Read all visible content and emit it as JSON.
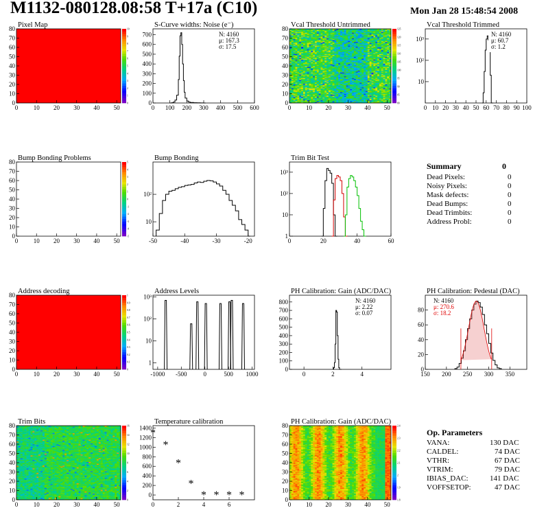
{
  "header": {
    "title": "M1132-080128.08:58 T+17a (C10)",
    "date": "Mon Jan 28 15:48:54 2008"
  },
  "colors": {
    "hist_line": "#000000",
    "trim_red": "#d40000",
    "trim_green": "#00c000",
    "fit_red": "#e00000",
    "map_red": "#ff0000"
  },
  "summary": {
    "title": "Summary",
    "total": "0",
    "rows": [
      {
        "label": "Dead Pixels:",
        "value": "0"
      },
      {
        "label": "Noisy Pixels:",
        "value": "0"
      },
      {
        "label": "Mask defects:",
        "value": "0"
      },
      {
        "label": "Dead Bumps:",
        "value": "0"
      },
      {
        "label": "Dead Trimbits:",
        "value": "0"
      },
      {
        "label": "Address Probl:",
        "value": "0"
      }
    ]
  },
  "op_params": {
    "title": "Op. Parameters",
    "rows": [
      {
        "label": "VANA:",
        "value": "130 DAC"
      },
      {
        "label": "CALDEL:",
        "value": "74 DAC"
      },
      {
        "label": "VTHR:",
        "value": "67 DAC"
      },
      {
        "label": "VTRIM:",
        "value": "79 DAC"
      },
      {
        "label": "IBIAS_DAC:",
        "value": "141 DAC"
      },
      {
        "label": "VOFFSETOP:",
        "value": "47 DAC"
      }
    ]
  },
  "chart_data": [
    {
      "id": "pixel_map",
      "type": "heatmap",
      "title": "Pixel Map",
      "fill": "uniform-red",
      "xlim": [
        0,
        52
      ],
      "ylim": [
        0,
        80
      ],
      "xticks": [
        0,
        10,
        20,
        30,
        40,
        50
      ],
      "yticks": [
        0,
        10,
        20,
        30,
        40,
        50,
        60,
        70,
        80
      ],
      "zlim": [
        0,
        10
      ],
      "zticks": [
        0,
        1,
        2,
        3,
        4,
        5,
        6,
        7,
        8,
        9,
        10
      ]
    },
    {
      "id": "scurve_noise",
      "type": "line",
      "title": "S-Curve widths: Noise (e⁻)",
      "xlim": [
        0,
        600
      ],
      "ylim": [
        0,
        760
      ],
      "xticks": [
        0,
        100,
        200,
        300,
        400,
        500,
        600
      ],
      "yticks": [
        0,
        100,
        200,
        300,
        400,
        500,
        600,
        700
      ],
      "stats": [
        "N: 4160",
        "μ: 167.3",
        "σ: 17.5"
      ],
      "x": [
        100,
        110,
        120,
        130,
        140,
        150,
        155,
        160,
        165,
        170,
        175,
        180,
        185,
        190,
        200,
        210,
        220,
        240,
        260,
        280,
        300
      ],
      "y": [
        0,
        3,
        10,
        30,
        80,
        240,
        480,
        690,
        720,
        600,
        400,
        230,
        110,
        50,
        20,
        10,
        5,
        3,
        2,
        1,
        0
      ]
    },
    {
      "id": "vcal_untrimmed",
      "type": "heatmap",
      "title": "Vcal Threshold Untrimmed",
      "fill": "noise-green",
      "xlim": [
        0,
        52
      ],
      "ylim": [
        0,
        80
      ],
      "xticks": [
        0,
        10,
        20,
        30,
        40,
        50
      ],
      "yticks": [
        0,
        10,
        20,
        30,
        40,
        50,
        60,
        70,
        80
      ],
      "zlim": [
        80,
        125
      ],
      "zticks": [
        80,
        85,
        90,
        95,
        100,
        105,
        110,
        115,
        120,
        125
      ]
    },
    {
      "id": "vcal_trimmed",
      "type": "line",
      "log_y": true,
      "title": "Vcal Threshold Trimmed",
      "xlim": [
        0,
        100
      ],
      "ylim": [
        1,
        3000
      ],
      "xticks": [
        0,
        10,
        20,
        30,
        40,
        50,
        60,
        70,
        80,
        90,
        100
      ],
      "ytick_labels": [
        {
          "v": 10,
          "t": "10"
        },
        {
          "v": 100,
          "t": "10²"
        },
        {
          "v": 1000,
          "t": "10³"
        }
      ],
      "stats": [
        "N: 4160",
        "μ: 60.7",
        "σ:  1.2"
      ],
      "x": [
        56,
        57,
        58,
        59,
        60,
        61,
        62,
        63,
        64,
        65
      ],
      "y": [
        1,
        3,
        30,
        300,
        1000,
        1400,
        900,
        300,
        20,
        1
      ]
    },
    {
      "id": "bump_problems",
      "type": "heatmap",
      "title": "Bump Bonding Problems",
      "fill": "empty",
      "xlim": [
        0,
        52
      ],
      "ylim": [
        0,
        80
      ],
      "xticks": [
        0,
        10,
        20,
        30,
        40,
        50
      ],
      "yticks": [
        0,
        10,
        20,
        30,
        40,
        50,
        60,
        70,
        80
      ],
      "zlim": [
        -5,
        5
      ],
      "zticks": [
        -5,
        -4,
        -3,
        -2,
        -1,
        0,
        1,
        2,
        3,
        4,
        5
      ]
    },
    {
      "id": "bump_bonding",
      "type": "line",
      "log_y": true,
      "title": "Bump Bonding",
      "xlim": [
        -50,
        -18
      ],
      "ylim": [
        3,
        1500
      ],
      "xticks": [
        -50,
        -40,
        -30,
        -20
      ],
      "ytick_labels": [
        {
          "v": 10,
          "t": "10"
        },
        {
          "v": 100,
          "t": "10²"
        }
      ],
      "x": [
        -49,
        -48,
        -47,
        -46,
        -45,
        -44,
        -43,
        -42,
        -41,
        -40,
        -39,
        -38,
        -37,
        -36,
        -35,
        -34,
        -33,
        -32,
        -31,
        -30,
        -29,
        -28,
        -27,
        -26,
        -25,
        -24,
        -23,
        -22,
        -21,
        -20
      ],
      "y": [
        5,
        20,
        60,
        100,
        130,
        140,
        160,
        180,
        190,
        210,
        220,
        230,
        260,
        280,
        270,
        300,
        320,
        310,
        280,
        240,
        200,
        140,
        100,
        60,
        40,
        25,
        12,
        8,
        5,
        3
      ]
    },
    {
      "id": "trim_bit_test",
      "type": "line",
      "log_y": true,
      "title": "Trim Bit Test",
      "xlim": [
        0,
        60
      ],
      "ylim": [
        1,
        3000
      ],
      "xticks": [
        0,
        20,
        40,
        60
      ],
      "ytick_labels": [
        {
          "v": 1,
          "t": "1"
        },
        {
          "v": 10,
          "t": "10"
        },
        {
          "v": 100,
          "t": "10²"
        },
        {
          "v": 1000,
          "t": "10³"
        }
      ],
      "series": [
        {
          "color": "#000000",
          "x": [
            19,
            20,
            21,
            22,
            23,
            24,
            25,
            26,
            27
          ],
          "y": [
            1,
            20,
            400,
            1500,
            1200,
            900,
            300,
            10,
            1
          ]
        },
        {
          "color": "#d40000",
          "x": [
            25,
            26,
            27,
            28,
            29,
            30,
            31,
            32,
            33
          ],
          "y": [
            1,
            50,
            500,
            700,
            600,
            400,
            100,
            8,
            1
          ]
        },
        {
          "color": "#00c000",
          "x": [
            32,
            33,
            34,
            35,
            36,
            37,
            38,
            39,
            40,
            41,
            42,
            43,
            44
          ],
          "y": [
            1,
            10,
            200,
            500,
            700,
            600,
            400,
            200,
            80,
            20,
            5,
            2,
            1
          ]
        }
      ]
    },
    {
      "id": "address_decoding",
      "type": "heatmap",
      "title": "Address decoding",
      "fill": "uniform-red",
      "xlim": [
        0,
        52
      ],
      "ylim": [
        0,
        80
      ],
      "xticks": [
        0,
        10,
        20,
        30,
        40,
        50
      ],
      "yticks": [
        0,
        10,
        20,
        30,
        40,
        50,
        60,
        70,
        80
      ],
      "zlim": [
        0,
        1
      ],
      "zticks": [
        0,
        0.1,
        0.2,
        0.3,
        0.4,
        0.5,
        0.6,
        0.7,
        0.8,
        0.9,
        1
      ]
    },
    {
      "id": "address_levels",
      "type": "line",
      "log_y": true,
      "title": "Address Levels",
      "xlim": [
        -1100,
        1050
      ],
      "ylim": [
        0.5,
        1200
      ],
      "xticks": [
        -1000,
        -500,
        0,
        500,
        1000
      ],
      "ytick_labels": [
        {
          "v": 1,
          "t": "1"
        },
        {
          "v": 10,
          "t": "10"
        },
        {
          "v": 100,
          "t": "10²"
        },
        {
          "v": 1000,
          "t": "10³"
        }
      ],
      "peaks": [
        -830,
        -290,
        -160,
        20,
        330,
        520,
        570,
        810
      ],
      "peak_heights": [
        700,
        60,
        600,
        500,
        500,
        600,
        700,
        500
      ]
    },
    {
      "id": "ph_gain",
      "type": "line",
      "title": "PH Calibration: Gain (ADC/DAC)",
      "xlim": [
        -1,
        6
      ],
      "ylim": [
        0,
        880
      ],
      "xticks": [
        0,
        2,
        4
      ],
      "yticks": [
        0,
        100,
        200,
        300,
        400,
        500,
        600,
        700,
        800
      ],
      "stats": [
        "N: 4160",
        "μ: 2.22",
        "σ: 0.07"
      ],
      "x": [
        2.0,
        2.05,
        2.1,
        2.15,
        2.2,
        2.25,
        2.3,
        2.35,
        2.4,
        2.45
      ],
      "y": [
        0,
        20,
        80,
        300,
        700,
        680,
        400,
        120,
        20,
        0
      ]
    },
    {
      "id": "ph_pedestal",
      "type": "line",
      "title": "PH Calibration: Pedestal (DAC)",
      "xlim": [
        150,
        390
      ],
      "ylim": [
        0,
        100
      ],
      "xticks": [
        150,
        200,
        250,
        300,
        350
      ],
      "yticks": [
        0,
        20,
        40,
        60,
        80
      ],
      "stats": [
        "N: 4160",
        "μ: 270.6",
        "σ: 18.2"
      ],
      "fit_mean": 270.6,
      "fit_sigma": 18.2,
      "fit_amp": 92,
      "x": [
        220,
        225,
        230,
        235,
        240,
        245,
        250,
        255,
        260,
        265,
        270,
        275,
        280,
        285,
        290,
        295,
        300,
        305,
        310,
        315,
        320,
        325
      ],
      "y": [
        1,
        3,
        8,
        15,
        25,
        40,
        55,
        68,
        80,
        88,
        92,
        90,
        84,
        74,
        60,
        48,
        35,
        22,
        12,
        6,
        2,
        1
      ]
    },
    {
      "id": "trim_bits",
      "type": "heatmap",
      "title": "Trim Bits",
      "fill": "noise-trim",
      "xlim": [
        0,
        52
      ],
      "ylim": [
        0,
        80
      ],
      "xticks": [
        0,
        10,
        20,
        30,
        40,
        50
      ],
      "yticks": [
        0,
        10,
        20,
        30,
        40,
        50,
        60,
        70,
        80
      ],
      "zlim": [
        0,
        16
      ],
      "zticks": [
        0,
        2,
        4,
        6,
        8,
        10,
        12,
        14,
        16
      ]
    },
    {
      "id": "temp_calibration",
      "type": "scatter",
      "title": "Temperature calibration",
      "xlim": [
        0,
        8
      ],
      "ylim": [
        -100,
        1450
      ],
      "xticks": [
        0,
        2,
        4,
        6
      ],
      "yticks": [
        0,
        200,
        400,
        600,
        800,
        1000,
        1200,
        1400
      ],
      "x": [
        0,
        1,
        2,
        3,
        4,
        5,
        6,
        7
      ],
      "y": [
        1300,
        1050,
        670,
        240,
        0,
        0,
        0,
        0
      ]
    },
    {
      "id": "ph_gain_map",
      "type": "heatmap",
      "title": "PH Calibration: Gain (ADC/DAC)",
      "fill": "gain-map",
      "xlim": [
        0,
        52
      ],
      "ylim": [
        0,
        80
      ],
      "xticks": [
        0,
        10,
        20,
        30,
        40,
        50
      ],
      "yticks": [
        0,
        10,
        20,
        30,
        40,
        50,
        60,
        70,
        80
      ],
      "zlim": [
        1.8,
        2.4
      ],
      "zticks": [
        1.8,
        1.9,
        2,
        2.1,
        2.2,
        2.3,
        2.4
      ]
    }
  ]
}
